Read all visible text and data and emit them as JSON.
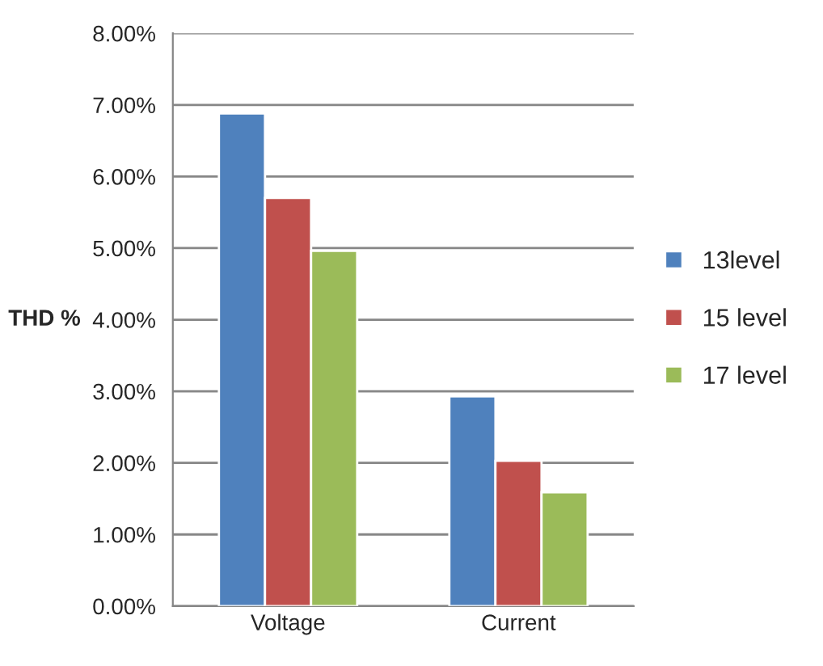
{
  "chart_data": {
    "type": "bar",
    "ylabel": "THD %",
    "categories": [
      "Voltage",
      "Current"
    ],
    "series": [
      {
        "name": "13level",
        "color": "#4f81bd",
        "values": [
          6.88,
          2.93
        ]
      },
      {
        "name": "15 level",
        "color": "#c0504d",
        "values": [
          5.7,
          2.03
        ]
      },
      {
        "name": "17 level",
        "color": "#9bbb59",
        "values": [
          4.96,
          1.59
        ]
      }
    ],
    "ylim": [
      0,
      8
    ],
    "yticks": [
      {
        "value": 0,
        "label": "0.00%"
      },
      {
        "value": 1,
        "label": "1.00%"
      },
      {
        "value": 2,
        "label": "2.00%"
      },
      {
        "value": 3,
        "label": "3.00%"
      },
      {
        "value": 4,
        "label": "4.00%"
      },
      {
        "value": 5,
        "label": "5.00%"
      },
      {
        "value": 6,
        "label": "6.00%"
      },
      {
        "value": 7,
        "label": "7.00%"
      },
      {
        "value": 8,
        "label": "8.00%"
      }
    ],
    "grid": "y",
    "legend": "right"
  }
}
